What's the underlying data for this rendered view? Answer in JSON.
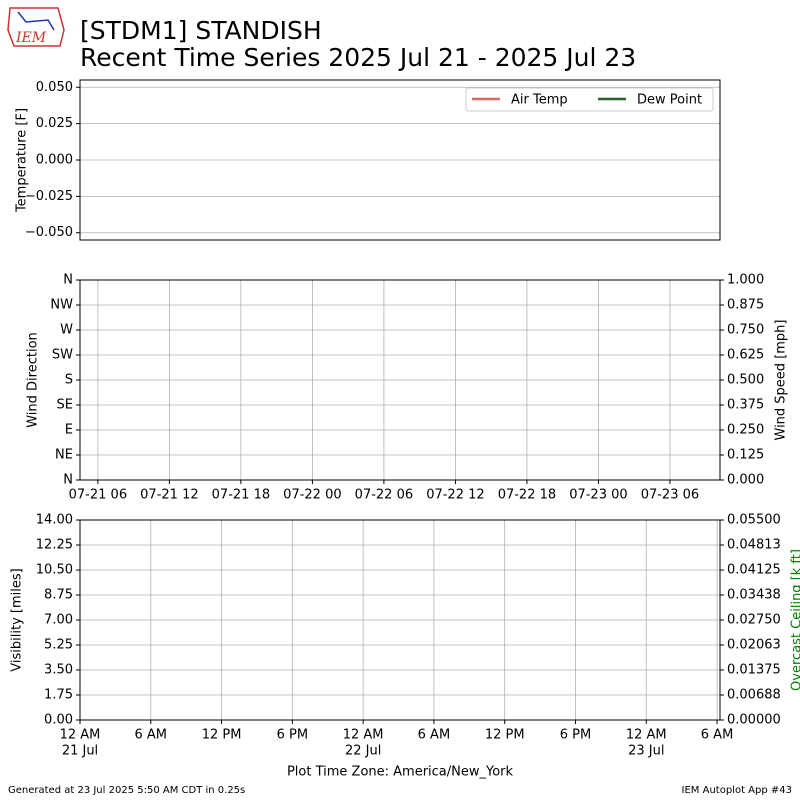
{
  "header": {
    "logo": "IEM",
    "title": "[STDM1] STANDISH",
    "subtitle": "Recent Time Series 2025 Jul 21 - 2025 Jul 23"
  },
  "footer": {
    "left": "Generated at 23 Jul 2025 5:50 AM CDT in 0.25s",
    "right": "IEM Autoplot App #43"
  },
  "chart_data": [
    {
      "type": "line",
      "ylabel": "Temperature [F]",
      "ylim": [
        -0.055,
        0.055
      ],
      "yticks": [
        {
          "value": 0.05,
          "label": "0.050"
        },
        0.025,
        {
          "value": 0,
          "label": "0.000"
        },
        {
          "value": -0.025,
          "label": "−0.025"
        },
        {
          "value": -0.05,
          "label": "−0.050"
        }
      ],
      "grid": "y",
      "legend": "upper right",
      "x": [],
      "series": [
        {
          "name": "Air Temp",
          "color": "#e06666",
          "values": []
        },
        {
          "name": "Dew Point",
          "color": "#2e5e2e",
          "values": []
        }
      ]
    },
    {
      "type": "line",
      "ylabel": "Wind Direction",
      "y2label": "Wind Speed [mph]",
      "grid": "both",
      "xlim": [
        "07-21 04:30",
        "07-23 10:12"
      ],
      "xticks": [
        "07-21 06",
        "07-21 12",
        "07-21 18",
        "07-22 00",
        "07-22 06",
        "07-22 12",
        "07-22 18",
        "07-23 00",
        "07-23 06"
      ],
      "ylim": [
        0,
        360
      ],
      "yticks": [
        {
          "value": 0,
          "label": "N"
        },
        {
          "value": 45,
          "label": "NE"
        },
        {
          "value": 90,
          "label": "E"
        },
        {
          "value": 135,
          "label": "SE"
        },
        {
          "value": 180,
          "label": "S"
        },
        {
          "value": 225,
          "label": "SW"
        },
        {
          "value": 270,
          "label": "W"
        },
        {
          "value": 315,
          "label": "NW"
        },
        {
          "value": 360,
          "label": "N"
        }
      ],
      "y2lim": [
        0,
        1
      ],
      "y2ticks": [
        {
          "value": 0,
          "label": "0.000"
        },
        0.125,
        {
          "value": 0.25,
          "label": "0.250"
        },
        0.375,
        {
          "value": 0.5,
          "label": "0.500"
        },
        0.625,
        {
          "value": 0.75,
          "label": "0.750"
        },
        0.875,
        {
          "value": 1,
          "label": "1.000"
        }
      ]
    },
    {
      "type": "line",
      "ylabel": "Visibility [miles]",
      "y2label": "Overcast Ceiling [k ft]",
      "y2label_color": "#008000",
      "xlabel": "Plot Time Zone: America/New_York",
      "grid": "both",
      "xlim": [
        "07-21 00:00",
        "07-23 06:15"
      ],
      "xticks": [
        {
          "value": "07-21 00:00",
          "label": "12 AM",
          "date": "21 Jul"
        },
        {
          "value": "07-21 06:00",
          "label": "6 AM"
        },
        {
          "value": "07-21 12:00",
          "label": "12 PM"
        },
        {
          "value": "07-21 18:00",
          "label": "6 PM"
        },
        {
          "value": "07-22 00:00",
          "label": "12 AM",
          "date": "22 Jul"
        },
        {
          "value": "07-22 06:00",
          "label": "6 AM"
        },
        {
          "value": "07-22 12:00",
          "label": "12 PM"
        },
        {
          "value": "07-22 18:00",
          "label": "6 PM"
        },
        {
          "value": "07-23 00:00",
          "label": "12 AM",
          "date": "23 Jul"
        },
        {
          "value": "07-23 06:00",
          "label": "6 AM"
        }
      ],
      "ylim": [
        0,
        14
      ],
      "yticks": [
        {
          "value": 0,
          "label": "0.00"
        },
        1.75,
        {
          "value": 3.5,
          "label": "3.50"
        },
        5.25,
        {
          "value": 7,
          "label": "7.00"
        },
        8.75,
        {
          "value": 10.5,
          "label": "10.50"
        },
        12.25,
        {
          "value": 14,
          "label": "14.00"
        }
      ],
      "y2lim": [
        0,
        0.055
      ],
      "y2ticks": [
        {
          "value": 0,
          "label": "0.00000"
        },
        0.00688,
        0.01375,
        0.02063,
        {
          "value": 0.0275,
          "label": "0.02750"
        },
        0.03438,
        {
          "value": 0.04125,
          "label": "0.04125"
        },
        0.04813,
        {
          "value": 0.055,
          "label": "0.05500"
        }
      ]
    }
  ]
}
